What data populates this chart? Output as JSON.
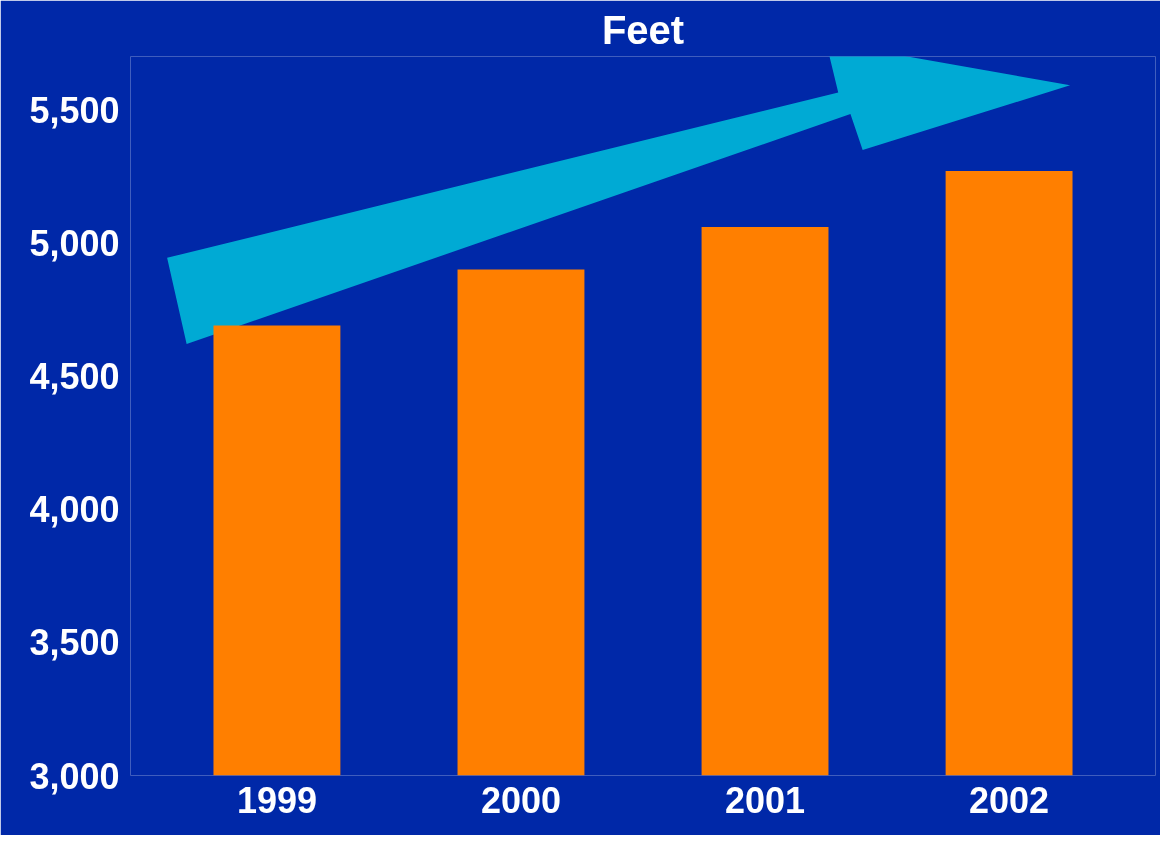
{
  "chart_data": {
    "type": "bar",
    "title": "Feet",
    "categories": [
      "1999",
      "2000",
      "2001",
      "2002"
    ],
    "values": [
      4690,
      4900,
      5060,
      5270
    ],
    "color": "#ff7f00",
    "ylim": [
      3000,
      5700
    ],
    "yticks": [
      {
        "value": 3000,
        "label": "3,000"
      },
      {
        "value": 3500,
        "label": "3,500"
      },
      {
        "value": 4000,
        "label": "4,000"
      },
      {
        "value": 4500,
        "label": "4,500"
      },
      {
        "value": 5000,
        "label": "5,000"
      },
      {
        "value": 5500,
        "label": "5,500"
      }
    ],
    "grid": false
  }
}
